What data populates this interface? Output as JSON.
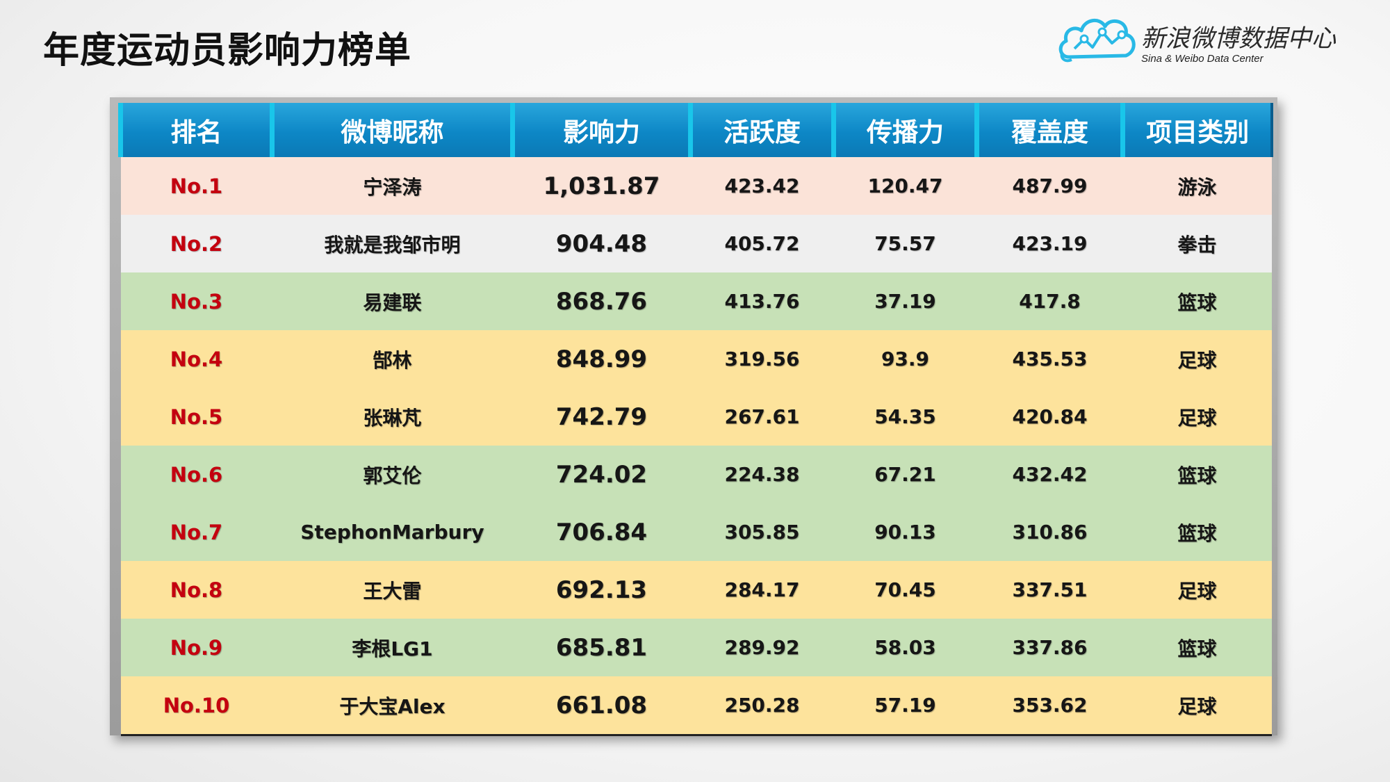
{
  "page": {
    "title": "年度运动员影响力榜单"
  },
  "logo": {
    "name": "新浪微博数据中心",
    "subtitle": "Sina & Weibo Data Center",
    "icon": "cloud-chart-icon",
    "color": "#29b9e6"
  },
  "colors": {
    "header": "#0d87c6",
    "rank_text": "#c4000f",
    "row_pink": "#fbe3d8",
    "row_gray": "#efefef",
    "row_green": "#c7e1b7",
    "row_yellow": "#fde39c"
  },
  "table": {
    "headers": [
      "排名",
      "微博昵称",
      "影响力",
      "活跃度",
      "传播力",
      "覆盖度",
      "项目类别"
    ],
    "rows": [
      {
        "rank": "No.1",
        "name": "宁泽涛",
        "influence": "1,031.87",
        "activity": "423.42",
        "spread": "120.47",
        "coverage": "487.99",
        "category": "游泳",
        "bg": "#fbe3d8"
      },
      {
        "rank": "No.2",
        "name": "我就是我邹市明",
        "influence": "904.48",
        "activity": "405.72",
        "spread": "75.57",
        "coverage": "423.19",
        "category": "拳击",
        "bg": "#efefef"
      },
      {
        "rank": "No.3",
        "name": "易建联",
        "influence": "868.76",
        "activity": "413.76",
        "spread": "37.19",
        "coverage": "417.8",
        "category": "篮球",
        "bg": "#c7e1b7"
      },
      {
        "rank": "No.4",
        "name": "郜林",
        "influence": "848.99",
        "activity": "319.56",
        "spread": "93.9",
        "coverage": "435.53",
        "category": "足球",
        "bg": "#fde39c"
      },
      {
        "rank": "No.5",
        "name": "张琳芃",
        "influence": "742.79",
        "activity": "267.61",
        "spread": "54.35",
        "coverage": "420.84",
        "category": "足球",
        "bg": "#fde39c"
      },
      {
        "rank": "No.6",
        "name": "郭艾伦",
        "influence": "724.02",
        "activity": "224.38",
        "spread": "67.21",
        "coverage": "432.42",
        "category": "篮球",
        "bg": "#c7e1b7"
      },
      {
        "rank": "No.7",
        "name": "StephonMarbury",
        "influence": "706.84",
        "activity": "305.85",
        "spread": "90.13",
        "coverage": "310.86",
        "category": "篮球",
        "bg": "#c7e1b7"
      },
      {
        "rank": "No.8",
        "name": "王大雷",
        "influence": "692.13",
        "activity": "284.17",
        "spread": "70.45",
        "coverage": "337.51",
        "category": "足球",
        "bg": "#fde39c"
      },
      {
        "rank": "No.9",
        "name": "李根LG1",
        "influence": "685.81",
        "activity": "289.92",
        "spread": "58.03",
        "coverage": "337.86",
        "category": "篮球",
        "bg": "#c7e1b7"
      },
      {
        "rank": "No.10",
        "name": "于大宝Alex",
        "influence": "661.08",
        "activity": "250.28",
        "spread": "57.19",
        "coverage": "353.62",
        "category": "足球",
        "bg": "#fde39c"
      }
    ]
  }
}
